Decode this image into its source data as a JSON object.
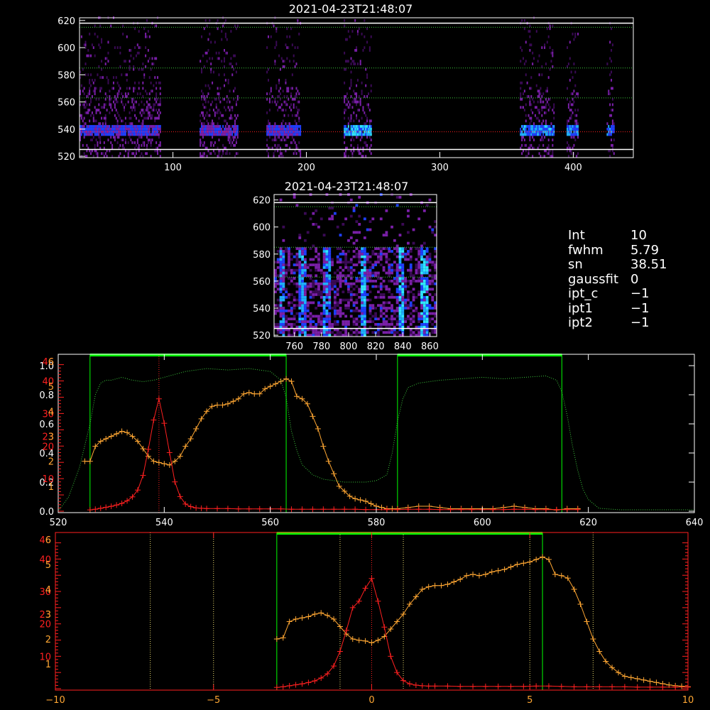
{
  "colors": {
    "background": "#000000",
    "white": "#ffffff",
    "red": "#ff2020",
    "orange": "#ffa733",
    "green": "#00ff00",
    "dotted_green": "#3cc83c",
    "dotted_yellow": "#f0e070",
    "spectral_magenta": "#7a1fa8",
    "spectral_blue": "#1f3fff",
    "spectral_cyan": "#30e8ff"
  },
  "info": [
    {
      "key": "Int",
      "value": "10"
    },
    {
      "key": "fwhm",
      "value": "5.79"
    },
    {
      "key": "sn",
      "value": "38.51"
    },
    {
      "key": "gaussfit",
      "value": "0"
    },
    {
      "key": "ipt_c",
      "value": "−1"
    },
    {
      "key": "ipt1",
      "value": "−1"
    },
    {
      "key": "ipt2",
      "value": "−1"
    }
  ],
  "chart_data": [
    {
      "type": "heatmap",
      "title": "2021-04-23T21:48:07",
      "xlim": [
        30,
        445
      ],
      "ylim": [
        519,
        622
      ],
      "x_ticks": [
        100,
        200,
        300,
        400
      ],
      "y_ticks": [
        520,
        540,
        560,
        580,
        600,
        620
      ],
      "white_hlines": [
        618,
        525
      ],
      "dotted_green_hlines": [
        615,
        585,
        563
      ],
      "dotted_red_hline": 538,
      "bursts": [
        [
          30,
          90
        ],
        [
          120,
          148
        ],
        [
          170,
          195
        ],
        [
          228,
          248
        ],
        [
          360,
          385
        ],
        [
          395,
          403
        ],
        [
          425,
          430
        ]
      ],
      "burst_intensity": [
        0.55,
        0.5,
        0.55,
        0.95,
        0.8,
        0.75,
        0.7
      ]
    },
    {
      "type": "heatmap",
      "title": "2021-04-23T21:48:07",
      "xlim": [
        745,
        865
      ],
      "ylim": [
        519,
        624
      ],
      "x_ticks": [
        760,
        780,
        800,
        820,
        840,
        860
      ],
      "y_ticks": [
        520,
        540,
        560,
        580,
        600,
        620
      ],
      "white_hlines": [
        618,
        525
      ],
      "dotted_green_hlines": [
        615,
        585,
        563
      ],
      "stripes": [
        750,
        765,
        783,
        810,
        838,
        855
      ]
    },
    {
      "type": "line",
      "xlim": [
        520,
        640
      ],
      "x_ticks": [
        520,
        540,
        560,
        580,
        600,
        620,
        640
      ],
      "left_white_ticks": [
        "1.0",
        "0.8",
        "0.6",
        "0.4",
        "0.2",
        "0.0"
      ],
      "left_red_ticks": [
        "46",
        "40",
        "30",
        "23",
        "20",
        "10"
      ],
      "left_orange_ticks": [
        "6",
        "5",
        "4",
        "3",
        "2",
        "1"
      ],
      "green_windows": [
        [
          526,
          563
        ],
        [
          584,
          615
        ]
      ],
      "red_dotted_vline": 539,
      "series": [
        {
          "color": "orange",
          "x": [
            525,
            526,
            527,
            528,
            529,
            530,
            531,
            532,
            533,
            534,
            535,
            536,
            537,
            538,
            539,
            540,
            541,
            542,
            543,
            544,
            545,
            546,
            547,
            548,
            549,
            550,
            551,
            552,
            553,
            554,
            555,
            556,
            557,
            558,
            559,
            560,
            561,
            562,
            563,
            564,
            565,
            566,
            567,
            568,
            569,
            570,
            571,
            572,
            573,
            574,
            575,
            576,
            577,
            578,
            579,
            580,
            581,
            582,
            583,
            584,
            586,
            588,
            590,
            592,
            594,
            596,
            598,
            600,
            602,
            604,
            606,
            608,
            610,
            612,
            614,
            616,
            618
          ],
          "y": [
            2.0,
            2.0,
            2.6,
            2.8,
            2.9,
            3.0,
            3.1,
            3.2,
            3.15,
            3.0,
            2.8,
            2.5,
            2.2,
            2.0,
            1.95,
            1.9,
            1.85,
            2.0,
            2.2,
            2.6,
            2.9,
            3.3,
            3.7,
            4.0,
            4.2,
            4.25,
            4.25,
            4.3,
            4.4,
            4.5,
            4.7,
            4.75,
            4.7,
            4.7,
            4.9,
            5.0,
            5.1,
            5.2,
            5.3,
            5.2,
            4.6,
            4.5,
            4.3,
            3.8,
            3.3,
            2.6,
            2.0,
            1.5,
            1.0,
            0.8,
            0.6,
            0.5,
            0.45,
            0.4,
            0.3,
            0.2,
            0.15,
            0.1,
            0.1,
            0.1,
            0.15,
            0.2,
            0.2,
            0.15,
            0.1,
            0.1,
            0.1,
            0.1,
            0.1,
            0.15,
            0.2,
            0.15,
            0.1,
            0.1,
            0.05,
            0.1,
            0.1
          ]
        },
        {
          "color": "red",
          "x": [
            526,
            527,
            528,
            529,
            530,
            531,
            532,
            533,
            534,
            535,
            536,
            537,
            538,
            539,
            540,
            541,
            542,
            543,
            544,
            545,
            546,
            547,
            548,
            550,
            552,
            554,
            556,
            558,
            560,
            562,
            564,
            566,
            568,
            570,
            572,
            574,
            576,
            578,
            580,
            582,
            584,
            586,
            588,
            590,
            592,
            594,
            596,
            598,
            600,
            602,
            604,
            606,
            608,
            610,
            612,
            614,
            616,
            618
          ],
          "y": [
            0.4,
            0.6,
            0.9,
            1.2,
            1.5,
            1.9,
            2.4,
            3.2,
            4.4,
            6.5,
            11,
            19,
            28,
            34.5,
            27,
            18,
            9,
            4.5,
            2.2,
            1.4,
            1.0,
            0.9,
            0.8,
            0.8,
            0.8,
            0.7,
            0.7,
            0.7,
            0.7,
            0.7,
            0.6,
            0.6,
            0.6,
            0.6,
            0.6,
            0.6,
            0.6,
            0.5,
            0.5,
            0.5,
            0.5,
            0.6,
            0.6,
            0.6,
            0.5,
            0.5,
            0.5,
            0.5,
            0.5,
            0.5,
            0.5,
            0.6,
            0.6,
            0.5,
            0.5,
            0.5,
            0.5,
            0.5
          ]
        },
        {
          "color": "dotted_green",
          "x": [
            520,
            522,
            524,
            526,
            527,
            528,
            529,
            530,
            532,
            534,
            536,
            538,
            540,
            544,
            548,
            552,
            556,
            560,
            562,
            563,
            564,
            565,
            566,
            568,
            570,
            574,
            578,
            580,
            582,
            583,
            584,
            585,
            586,
            588,
            592,
            596,
            600,
            604,
            608,
            612,
            614,
            615,
            616,
            617,
            618,
            619,
            620,
            622,
            626,
            632,
            640
          ],
          "y": [
            0.0,
            0.1,
            0.3,
            0.6,
            0.8,
            0.88,
            0.9,
            0.9,
            0.92,
            0.9,
            0.89,
            0.9,
            0.92,
            0.96,
            0.98,
            0.97,
            0.98,
            0.96,
            0.9,
            0.78,
            0.55,
            0.42,
            0.32,
            0.25,
            0.22,
            0.2,
            0.2,
            0.21,
            0.25,
            0.4,
            0.62,
            0.77,
            0.85,
            0.88,
            0.9,
            0.91,
            0.92,
            0.91,
            0.92,
            0.93,
            0.9,
            0.82,
            0.66,
            0.45,
            0.28,
            0.15,
            0.08,
            0.02,
            0.01,
            0.01,
            0.01
          ]
        }
      ]
    },
    {
      "type": "line",
      "xlim": [
        -10,
        10
      ],
      "x_ticks": [
        -10,
        -5,
        0,
        5,
        10
      ],
      "left_red_ticks": [
        "46",
        "40",
        "30",
        "23",
        "20",
        "10"
      ],
      "left_orange_ticks": [
        "6",
        "5",
        "4",
        "3",
        "2",
        "1"
      ],
      "green_window": [
        -3,
        5.4
      ],
      "yellow_dotted_vlines": [
        -7,
        -5,
        -1,
        1,
        5,
        7
      ],
      "red_dotted_vline": 0,
      "series": [
        {
          "color": "orange",
          "x": [
            -3.0,
            -2.8,
            -2.6,
            -2.4,
            -2.2,
            -2.0,
            -1.8,
            -1.6,
            -1.4,
            -1.2,
            -1.0,
            -0.8,
            -0.6,
            -0.4,
            -0.2,
            0.0,
            0.2,
            0.4,
            0.6,
            0.8,
            1.0,
            1.2,
            1.4,
            1.6,
            1.8,
            2.0,
            2.2,
            2.4,
            2.6,
            2.8,
            3.0,
            3.2,
            3.4,
            3.6,
            3.8,
            4.0,
            4.2,
            4.4,
            4.6,
            4.8,
            5.0,
            5.2,
            5.4,
            5.6,
            5.8,
            6.0,
            6.2,
            6.4,
            6.6,
            6.8,
            7.0,
            7.2,
            7.4,
            7.6,
            7.8,
            8.0,
            8.2,
            8.4,
            8.6,
            8.8,
            9.0,
            9.2,
            9.4,
            9.6,
            9.8,
            10.0
          ],
          "y": [
            2.0,
            2.05,
            2.7,
            2.8,
            2.85,
            2.9,
            3.0,
            3.05,
            2.95,
            2.8,
            2.5,
            2.2,
            2.0,
            1.95,
            1.92,
            1.85,
            1.95,
            2.1,
            2.4,
            2.7,
            3.0,
            3.4,
            3.7,
            4.0,
            4.1,
            4.15,
            4.15,
            4.2,
            4.3,
            4.4,
            4.55,
            4.6,
            4.55,
            4.6,
            4.7,
            4.75,
            4.8,
            4.9,
            5.0,
            5.05,
            5.1,
            5.2,
            5.3,
            5.2,
            4.6,
            4.55,
            4.45,
            4.0,
            3.4,
            2.7,
            2.0,
            1.5,
            1.1,
            0.85,
            0.65,
            0.5,
            0.45,
            0.4,
            0.35,
            0.3,
            0.25,
            0.2,
            0.15,
            0.12,
            0.1,
            0.08
          ]
        },
        {
          "color": "red",
          "x": [
            -3.0,
            -2.8,
            -2.6,
            -2.4,
            -2.2,
            -2.0,
            -1.8,
            -1.6,
            -1.4,
            -1.2,
            -1.0,
            -0.8,
            -0.6,
            -0.4,
            -0.2,
            0.0,
            0.2,
            0.4,
            0.6,
            0.8,
            1.0,
            1.2,
            1.4,
            1.6,
            1.8,
            2.0,
            2.4,
            2.8,
            3.2,
            3.6,
            4.0,
            4.4,
            4.8,
            5.2,
            5.6,
            6.0,
            6.4,
            6.8,
            7.2,
            7.6,
            8.0,
            8.4,
            8.8,
            9.2,
            9.6,
            10.0
          ],
          "y": [
            0.4,
            0.6,
            0.9,
            1.2,
            1.5,
            1.9,
            2.4,
            3.3,
            4.6,
            7,
            11.5,
            18,
            25,
            27,
            31,
            34,
            27,
            19,
            10,
            5,
            2.5,
            1.5,
            1.1,
            0.9,
            0.8,
            0.8,
            0.8,
            0.7,
            0.7,
            0.7,
            0.7,
            0.7,
            0.7,
            0.8,
            0.8,
            0.7,
            0.6,
            0.6,
            0.6,
            0.6,
            0.6,
            0.5,
            0.5,
            0.5,
            0.5,
            0.5
          ]
        }
      ]
    }
  ]
}
